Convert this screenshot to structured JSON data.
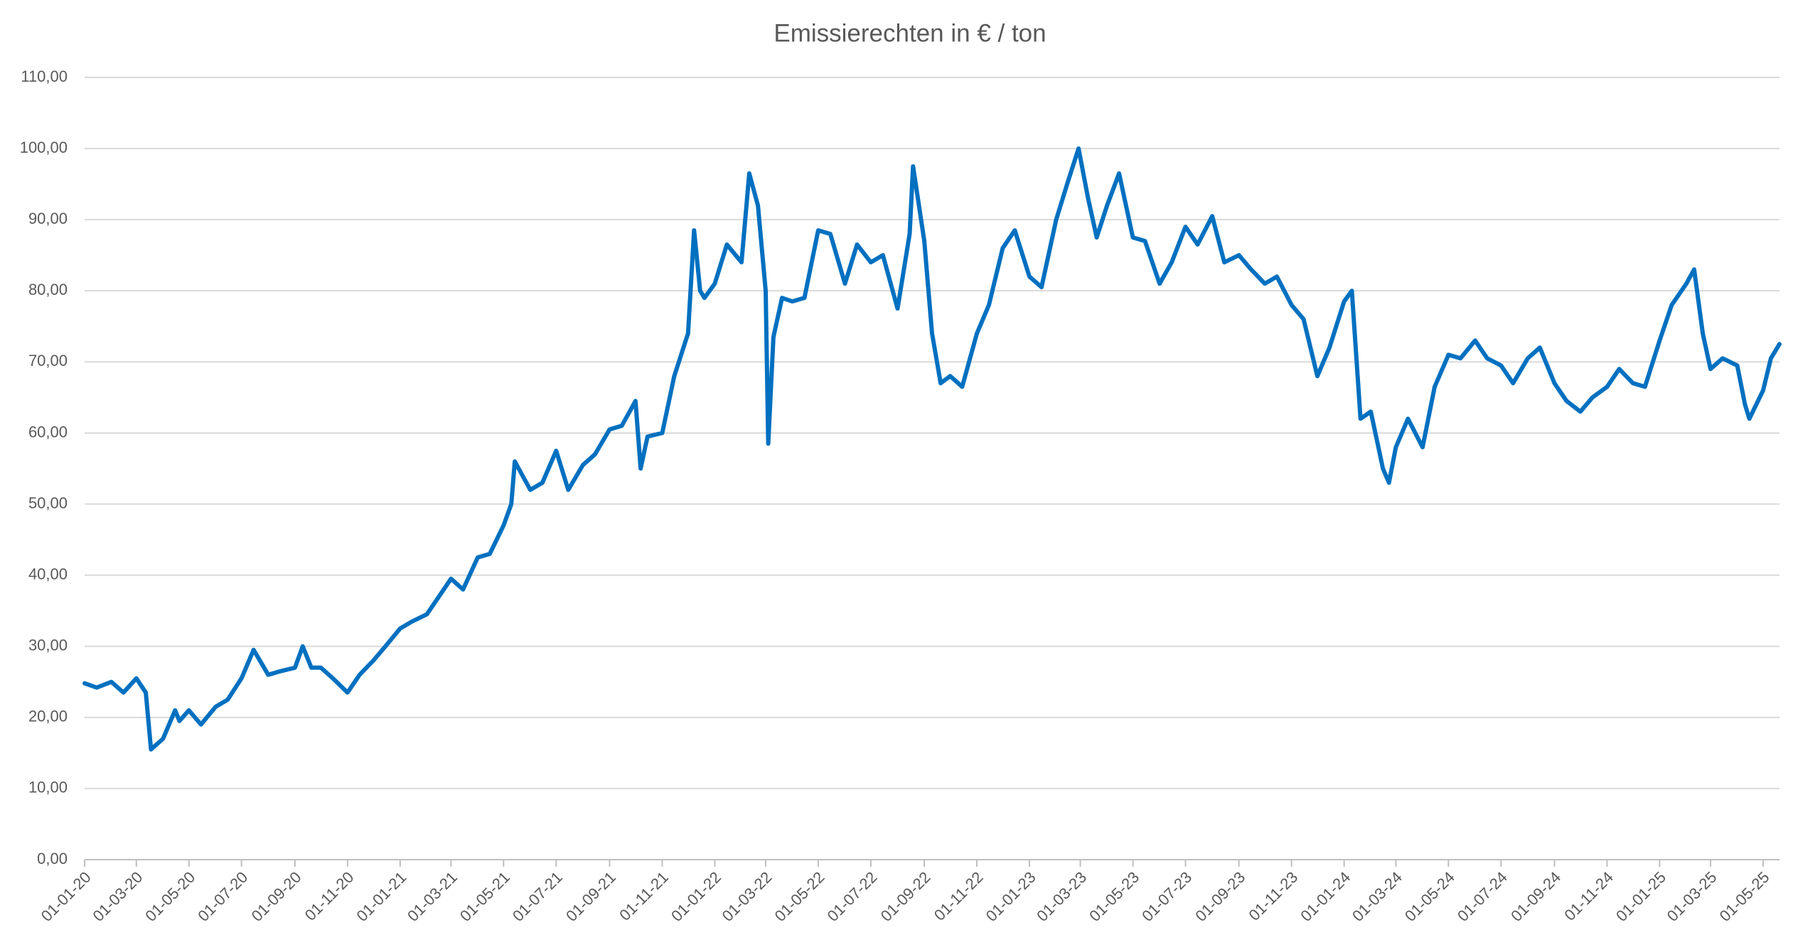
{
  "chart_data": {
    "type": "line",
    "title": "Emissierechten in € / ton",
    "x": [
      "2020-01-01",
      "2020-01-15",
      "2020-02-01",
      "2020-02-15",
      "2020-03-01",
      "2020-03-12",
      "2020-03-18",
      "2020-04-01",
      "2020-04-15",
      "2020-04-20",
      "2020-05-01",
      "2020-05-15",
      "2020-06-01",
      "2020-06-15",
      "2020-07-01",
      "2020-07-15",
      "2020-08-01",
      "2020-08-15",
      "2020-09-01",
      "2020-09-10",
      "2020-09-20",
      "2020-10-01",
      "2020-10-15",
      "2020-11-01",
      "2020-11-15",
      "2020-12-01",
      "2020-12-15",
      "2021-01-01",
      "2021-01-15",
      "2021-02-01",
      "2021-02-15",
      "2021-03-01",
      "2021-03-15",
      "2021-04-01",
      "2021-04-15",
      "2021-05-01",
      "2021-05-10",
      "2021-05-14",
      "2021-06-01",
      "2021-06-15",
      "2021-07-01",
      "2021-07-15",
      "2021-08-01",
      "2021-08-15",
      "2021-09-01",
      "2021-09-15",
      "2021-10-01",
      "2021-10-07",
      "2021-10-15",
      "2021-11-01",
      "2021-11-15",
      "2021-12-01",
      "2021-12-08",
      "2021-12-15",
      "2021-12-20",
      "2022-01-01",
      "2022-01-15",
      "2022-02-01",
      "2022-02-10",
      "2022-02-20",
      "2022-03-01",
      "2022-03-04",
      "2022-03-10",
      "2022-03-20",
      "2022-04-01",
      "2022-04-15",
      "2022-05-01",
      "2022-05-15",
      "2022-06-01",
      "2022-06-15",
      "2022-07-01",
      "2022-07-15",
      "2022-08-01",
      "2022-08-15",
      "2022-08-19",
      "2022-09-01",
      "2022-09-10",
      "2022-09-20",
      "2022-10-01",
      "2022-10-15",
      "2022-11-01",
      "2022-11-15",
      "2022-12-01",
      "2022-12-15",
      "2023-01-01",
      "2023-01-15",
      "2023-02-01",
      "2023-02-15",
      "2023-02-27",
      "2023-03-10",
      "2023-03-20",
      "2023-04-01",
      "2023-04-15",
      "2023-05-01",
      "2023-05-15",
      "2023-06-01",
      "2023-06-15",
      "2023-07-01",
      "2023-07-15",
      "2023-08-01",
      "2023-08-15",
      "2023-09-01",
      "2023-09-15",
      "2023-10-01",
      "2023-10-15",
      "2023-11-01",
      "2023-11-15",
      "2023-12-01",
      "2023-12-15",
      "2024-01-01",
      "2024-01-10",
      "2024-01-20",
      "2024-02-01",
      "2024-02-15",
      "2024-02-22",
      "2024-03-01",
      "2024-03-15",
      "2024-04-01",
      "2024-04-15",
      "2024-05-01",
      "2024-05-15",
      "2024-06-01",
      "2024-06-15",
      "2024-07-01",
      "2024-07-15",
      "2024-08-01",
      "2024-08-15",
      "2024-09-01",
      "2024-09-15",
      "2024-10-01",
      "2024-10-15",
      "2024-11-01",
      "2024-11-15",
      "2024-12-01",
      "2024-12-15",
      "2025-01-01",
      "2025-01-15",
      "2025-02-01",
      "2025-02-10",
      "2025-02-20",
      "2025-03-01",
      "2025-03-15",
      "2025-04-01",
      "2025-04-10",
      "2025-04-15",
      "2025-05-01",
      "2025-05-10",
      "2025-05-20"
    ],
    "values": [
      24.8,
      24.2,
      25.0,
      23.5,
      25.5,
      23.5,
      15.5,
      17.0,
      21.0,
      19.5,
      21.0,
      19.0,
      21.5,
      22.5,
      25.5,
      29.5,
      26.0,
      26.5,
      27.0,
      30.0,
      27.0,
      27.0,
      25.5,
      23.5,
      26.0,
      28.0,
      30.0,
      32.5,
      33.5,
      34.5,
      37.0,
      39.5,
      38.0,
      42.5,
      43.0,
      47.0,
      50.0,
      56.0,
      52.0,
      53.0,
      57.5,
      52.0,
      55.5,
      57.0,
      60.5,
      61.0,
      64.5,
      55.0,
      59.5,
      60.0,
      68.0,
      74.0,
      88.5,
      80.0,
      79.0,
      81.0,
      86.5,
      84.0,
      96.5,
      92.0,
      80.0,
      58.5,
      73.5,
      79.0,
      78.5,
      79.0,
      88.5,
      88.0,
      81.0,
      86.5,
      84.0,
      85.0,
      77.5,
      88.0,
      97.5,
      87.0,
      74.0,
      67.0,
      68.0,
      66.5,
      74.0,
      78.0,
      86.0,
      88.5,
      82.0,
      80.5,
      90.0,
      95.5,
      100.0,
      93.0,
      87.5,
      92.0,
      96.5,
      87.5,
      87.0,
      81.0,
      84.0,
      89.0,
      86.5,
      90.5,
      84.0,
      85.0,
      83.0,
      81.0,
      82.0,
      78.0,
      76.0,
      68.0,
      72.0,
      78.5,
      80.0,
      62.0,
      63.0,
      55.0,
      53.0,
      58.0,
      62.0,
      58.0,
      66.5,
      71.0,
      70.5,
      73.0,
      70.5,
      69.5,
      67.0,
      70.5,
      72.0,
      67.0,
      64.5,
      63.0,
      65.0,
      66.5,
      69.0,
      67.0,
      66.5,
      73.0,
      78.0,
      81.0,
      83.0,
      74.0,
      69.0,
      70.5,
      69.5,
      64.0,
      62.0,
      66.0,
      70.5,
      72.5
    ],
    "color": "#0070c0",
    "xlim": [
      "2020-01-01",
      "2025-05-20"
    ],
    "xticks": [
      {
        "value": "2020-01-01",
        "label": "01-01-20"
      },
      {
        "value": "2020-03-01",
        "label": "01-03-20"
      },
      {
        "value": "2020-05-01",
        "label": "01-05-20"
      },
      {
        "value": "2020-07-01",
        "label": "01-07-20"
      },
      {
        "value": "2020-09-01",
        "label": "01-09-20"
      },
      {
        "value": "2020-11-01",
        "label": "01-11-20"
      },
      {
        "value": "2021-01-01",
        "label": "01-01-21"
      },
      {
        "value": "2021-03-01",
        "label": "01-03-21"
      },
      {
        "value": "2021-05-01",
        "label": "01-05-21"
      },
      {
        "value": "2021-07-01",
        "label": "01-07-21"
      },
      {
        "value": "2021-09-01",
        "label": "01-09-21"
      },
      {
        "value": "2021-11-01",
        "label": "01-11-21"
      },
      {
        "value": "2022-01-01",
        "label": "01-01-22"
      },
      {
        "value": "2022-03-01",
        "label": "01-03-22"
      },
      {
        "value": "2022-05-01",
        "label": "01-05-22"
      },
      {
        "value": "2022-07-01",
        "label": "01-07-22"
      },
      {
        "value": "2022-09-01",
        "label": "01-09-22"
      },
      {
        "value": "2022-11-01",
        "label": "01-11-22"
      },
      {
        "value": "2023-01-01",
        "label": "01-01-23"
      },
      {
        "value": "2023-03-01",
        "label": "01-03-23"
      },
      {
        "value": "2023-05-01",
        "label": "01-05-23"
      },
      {
        "value": "2023-07-01",
        "label": "01-07-23"
      },
      {
        "value": "2023-09-01",
        "label": "01-09-23"
      },
      {
        "value": "2023-11-01",
        "label": "01-11-23"
      },
      {
        "value": "2024-01-01",
        "label": "01-01-24"
      },
      {
        "value": "2024-03-01",
        "label": "01-03-24"
      },
      {
        "value": "2024-05-01",
        "label": "01-05-24"
      },
      {
        "value": "2024-07-01",
        "label": "01-07-24"
      },
      {
        "value": "2024-09-01",
        "label": "01-09-24"
      },
      {
        "value": "2024-11-01",
        "label": "01-11-24"
      },
      {
        "value": "2025-01-01",
        "label": "01-01-25"
      },
      {
        "value": "2025-03-01",
        "label": "01-03-25"
      },
      {
        "value": "2025-05-01",
        "label": "01-05-25"
      }
    ],
    "ylim": [
      0,
      110
    ],
    "yticks": [
      {
        "value": 0,
        "label": "0,00"
      },
      {
        "value": 10,
        "label": "10,00"
      },
      {
        "value": 20,
        "label": "20,00"
      },
      {
        "value": 30,
        "label": "30,00"
      },
      {
        "value": 40,
        "label": "40,00"
      },
      {
        "value": 50,
        "label": "50,00"
      },
      {
        "value": 60,
        "label": "60,00"
      },
      {
        "value": 70,
        "label": "70,00"
      },
      {
        "value": 80,
        "label": "80,00"
      },
      {
        "value": 90,
        "label": "90,00"
      },
      {
        "value": 100,
        "label": "100,00"
      },
      {
        "value": 110,
        "label": "110,00"
      }
    ],
    "grid": true
  }
}
